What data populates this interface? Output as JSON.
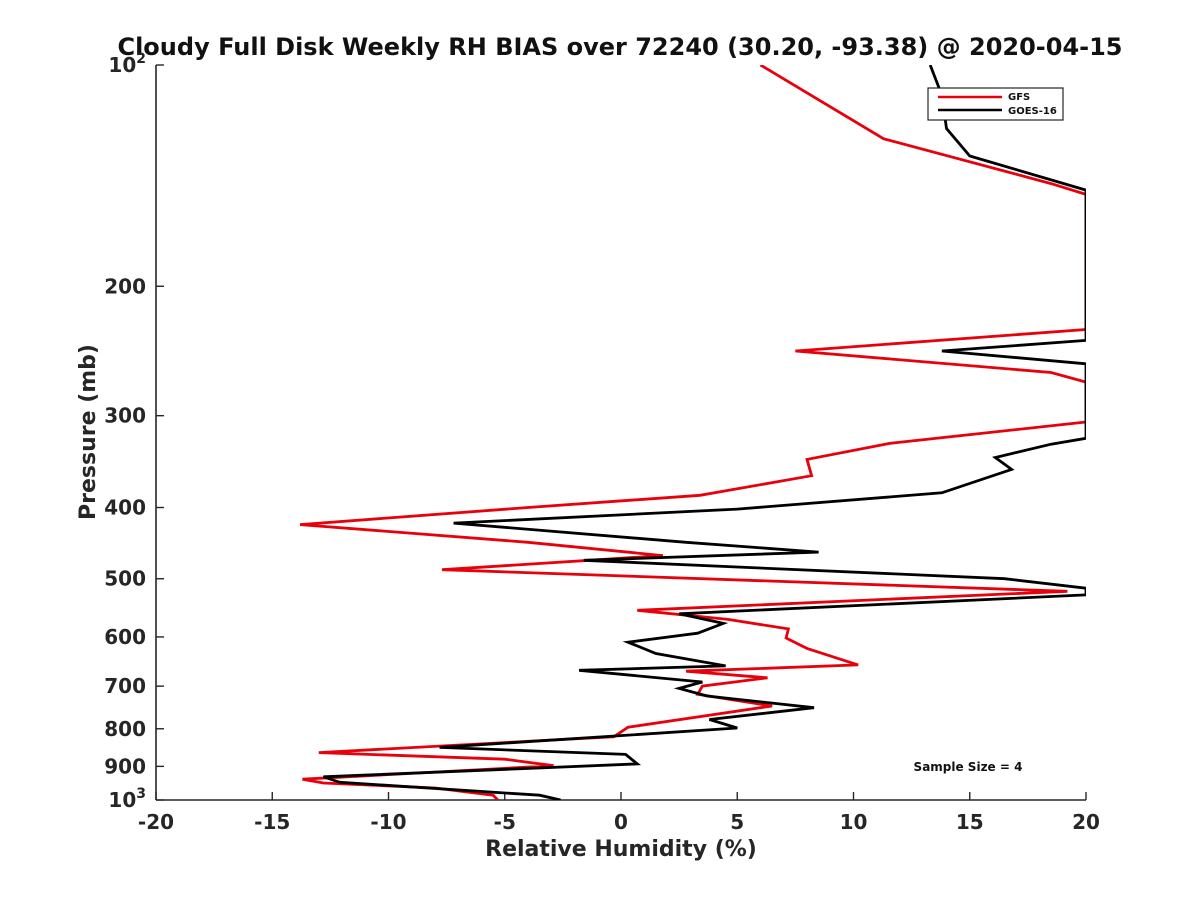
{
  "chart_data": {
    "type": "line",
    "title": "Cloudy Full Disk Weekly RH BIAS over 72240 (30.20, -93.38) @ 2020-04-15",
    "xlabel": "Relative Humidity (%)",
    "ylabel": "Pressure (mb)",
    "xlim": [
      -20,
      20
    ],
    "ylim": [
      100,
      1000
    ],
    "yscale": "log",
    "y_reversed": true,
    "grid": false,
    "x_ticks": [
      -20,
      -15,
      -10,
      -5,
      0,
      5,
      10,
      15,
      20
    ],
    "x_tick_labels": [
      "-20",
      "-15",
      "-10",
      "-5",
      "0",
      "5",
      "10",
      "15",
      "20"
    ],
    "y_ticks": [
      {
        "value": 100,
        "base": "10",
        "exp": "2"
      },
      {
        "value": 200,
        "label": "200"
      },
      {
        "value": 300,
        "label": "300"
      },
      {
        "value": 400,
        "label": "400"
      },
      {
        "value": 500,
        "label": "500"
      },
      {
        "value": 600,
        "label": "600"
      },
      {
        "value": 700,
        "label": "700"
      },
      {
        "value": 800,
        "label": "800"
      },
      {
        "value": 900,
        "label": "900"
      },
      {
        "value": 1000,
        "base": "10",
        "exp": "3"
      }
    ],
    "legend_position": "top-right",
    "annotation": "Sample Size = 4",
    "series": [
      {
        "name": "GFS",
        "color": "#e8000b",
        "points": [
          [
            6.0,
            100
          ],
          [
            11.3,
            126
          ],
          [
            18.5,
            145
          ],
          [
            20.0,
            150
          ],
          [
            20.0,
            229
          ],
          [
            7.5,
            245
          ],
          [
            18.5,
            262
          ],
          [
            20.0,
            270
          ],
          [
            20.0,
            306
          ],
          [
            11.6,
            327
          ],
          [
            8.0,
            344
          ],
          [
            8.2,
            362
          ],
          [
            3.4,
            385
          ],
          [
            -4.0,
            400
          ],
          [
            -13.8,
            422
          ],
          [
            -4.0,
            446
          ],
          [
            1.8,
            465
          ],
          [
            -7.7,
            486
          ],
          [
            19.2,
            520
          ],
          [
            0.7,
            552
          ],
          [
            4.6,
            568
          ],
          [
            7.2,
            585
          ],
          [
            7.1,
            602
          ],
          [
            8.0,
            622
          ],
          [
            10.2,
            655
          ],
          [
            2.8,
            668
          ],
          [
            6.3,
            682
          ],
          [
            3.5,
            700
          ],
          [
            3.3,
            718
          ],
          [
            6.5,
            745
          ],
          [
            0.3,
            796
          ],
          [
            -0.3,
            820
          ],
          [
            -13.0,
            862
          ],
          [
            -5.0,
            880
          ],
          [
            -2.9,
            898
          ],
          [
            -13.7,
            937
          ],
          [
            -12.8,
            948
          ],
          [
            -8.0,
            963
          ],
          [
            -5.5,
            985
          ],
          [
            -5.3,
            1000
          ]
        ]
      },
      {
        "name": "GOES-16",
        "color": "#000000",
        "points": [
          [
            13.3,
            100
          ],
          [
            13.8,
            110
          ],
          [
            14.0,
            122
          ],
          [
            15.0,
            133
          ],
          [
            20.0,
            148
          ],
          [
            20.0,
            237
          ],
          [
            13.8,
            245
          ],
          [
            20.0,
            255
          ],
          [
            20.0,
            322
          ],
          [
            18.5,
            328
          ],
          [
            16.1,
            342
          ],
          [
            16.8,
            355
          ],
          [
            13.8,
            382
          ],
          [
            5.0,
            402
          ],
          [
            -7.2,
            420
          ],
          [
            2.8,
            446
          ],
          [
            8.5,
            460
          ],
          [
            -1.6,
            472
          ],
          [
            16.5,
            500
          ],
          [
            20.0,
            515
          ],
          [
            20.0,
            526
          ],
          [
            2.5,
            558
          ],
          [
            4.4,
            575
          ],
          [
            3.3,
            593
          ],
          [
            0.3,
            610
          ],
          [
            1.5,
            632
          ],
          [
            4.5,
            657
          ],
          [
            -1.8,
            666
          ],
          [
            3.5,
            691
          ],
          [
            2.5,
            705
          ],
          [
            3.7,
            722
          ],
          [
            8.3,
            749
          ],
          [
            3.8,
            777
          ],
          [
            5.0,
            798
          ],
          [
            -7.8,
            848
          ],
          [
            0.2,
            867
          ],
          [
            0.7,
            893
          ],
          [
            -12.8,
            930
          ],
          [
            -12.1,
            946
          ],
          [
            -3.5,
            985
          ],
          [
            -2.6,
            1000
          ]
        ]
      }
    ]
  }
}
